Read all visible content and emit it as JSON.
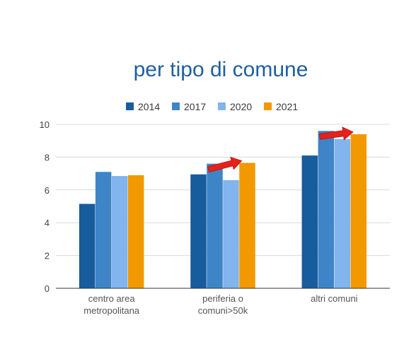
{
  "chart_data": {
    "type": "bar",
    "title": "per tipo di comune",
    "xlabel": "",
    "ylabel": "",
    "ylim": [
      0,
      10
    ],
    "yticks": [
      "0",
      "2",
      "4",
      "6",
      "8",
      "10"
    ],
    "grid": true,
    "legend_position": "top",
    "categories": [
      [
        "centro area",
        "metropolitana"
      ],
      [
        "periferia o",
        "comuni>50k"
      ],
      [
        "altri comuni"
      ]
    ],
    "series": [
      {
        "name": "2014",
        "color": "#175c9c",
        "values": [
          5.15,
          6.95,
          8.1
        ]
      },
      {
        "name": "2017",
        "color": "#3d85c6",
        "values": [
          7.1,
          7.6,
          9.6
        ]
      },
      {
        "name": "2020",
        "color": "#82b4ee",
        "values": [
          6.85,
          6.6,
          9.1
        ]
      },
      {
        "name": "2021",
        "color": "#f29900",
        "values": [
          6.9,
          7.65,
          9.4
        ]
      }
    ],
    "annotations": [
      {
        "type": "arrow",
        "color": "#e8201a",
        "category_index": 1,
        "from_series": 1,
        "to_series": 3
      },
      {
        "type": "arrow",
        "color": "#e8201a",
        "category_index": 2,
        "from_series": 1,
        "to_series": 3
      }
    ]
  }
}
